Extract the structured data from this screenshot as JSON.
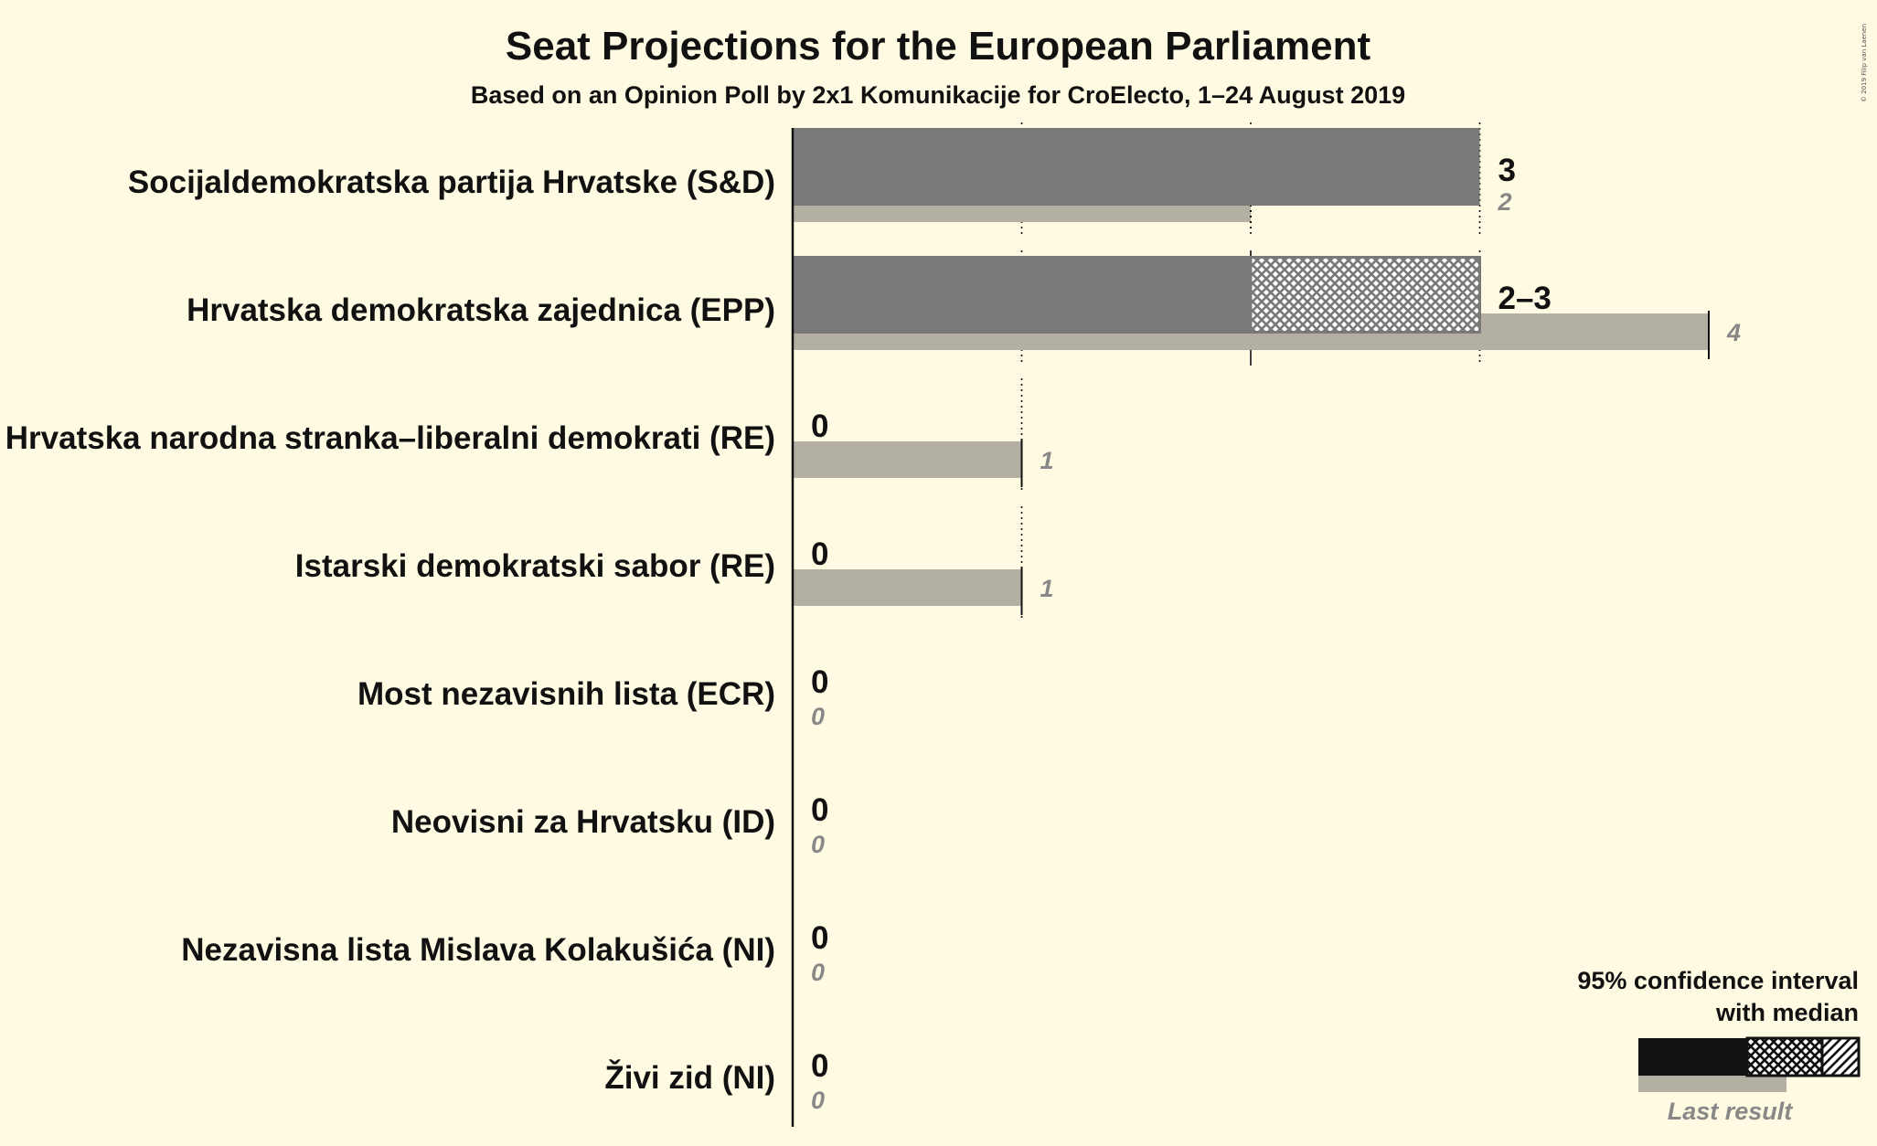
{
  "chart_data": {
    "type": "bar",
    "title": "Seat Projections for the European Parliament",
    "subtitle": "Based on an Opinion Poll by 2x1 Komunikacije for CroElecto, 1–24 August 2019",
    "copyright": "© 2019 Filip van Laenen",
    "xlim": [
      0,
      4
    ],
    "gridlines": [
      1,
      2,
      3
    ],
    "parties": [
      {
        "name": "Socijaldemokratska partija Hrvatske (S&D)",
        "ci_low": 3,
        "median": 3,
        "ci_high": 3,
        "projection_label": "3",
        "last_result": 2,
        "last_label": "2"
      },
      {
        "name": "Hrvatska demokratska zajednica (EPP)",
        "ci_low": 2,
        "median": 3,
        "ci_high": 3,
        "projection_label": "2–3",
        "last_result": 4,
        "last_label": "4"
      },
      {
        "name": "Hrvatska narodna stranka–liberalni demokrati (RE)",
        "ci_low": 0,
        "median": 0,
        "ci_high": 0,
        "projection_label": "0",
        "last_result": 1,
        "last_label": "1"
      },
      {
        "name": "Istarski demokratski sabor (RE)",
        "ci_low": 0,
        "median": 0,
        "ci_high": 0,
        "projection_label": "0",
        "last_result": 1,
        "last_label": "1"
      },
      {
        "name": "Most nezavisnih lista (ECR)",
        "ci_low": 0,
        "median": 0,
        "ci_high": 0,
        "projection_label": "0",
        "last_result": 0,
        "last_label": "0"
      },
      {
        "name": "Neovisni za Hrvatsku (ID)",
        "ci_low": 0,
        "median": 0,
        "ci_high": 0,
        "projection_label": "0",
        "last_result": 0,
        "last_label": "0"
      },
      {
        "name": "Nezavisna lista Mislava Kolakušića (NI)",
        "ci_low": 0,
        "median": 0,
        "ci_high": 0,
        "projection_label": "0",
        "last_result": 0,
        "last_label": "0"
      },
      {
        "name": "Živi zid (NI)",
        "ci_low": 0,
        "median": 0,
        "ci_high": 0,
        "projection_label": "0",
        "last_result": 0,
        "last_label": "0"
      }
    ],
    "legend": {
      "line1": "95% confidence interval",
      "line2": "with median",
      "last_result": "Last result",
      "placement": "bottom-right"
    },
    "colors": {
      "background": "#fffbe2",
      "projection": "#797979",
      "last_result": "#b3b0a3",
      "legend_bar": "#111111",
      "text": "#111111",
      "last_text": "#888888"
    }
  }
}
